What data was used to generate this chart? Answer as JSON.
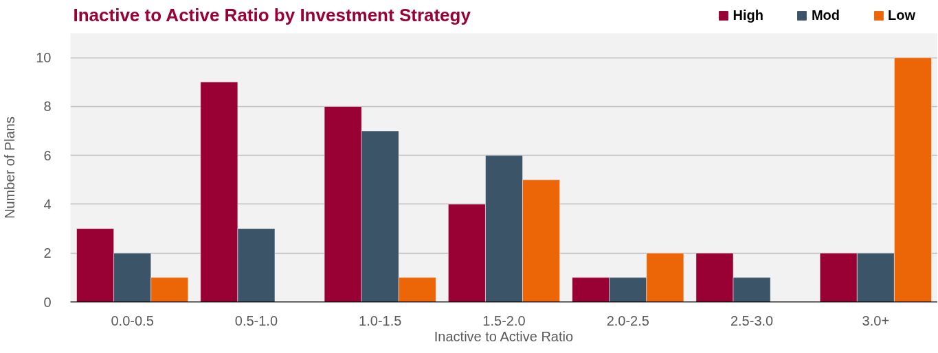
{
  "chart_data": {
    "type": "bar",
    "title": "Inactive to Active Ratio by Investment Strategy",
    "xlabel": "Inactive to Active Ratio",
    "ylabel": "Number of Plans",
    "categories": [
      "0.0-0.5",
      "0.5-1.0",
      "1.0-1.5",
      "1.5-2.0",
      "2.0-2.5",
      "2.5-3.0",
      "3.0+"
    ],
    "series": [
      {
        "name": "High",
        "color": "#990033",
        "values": [
          3,
          9,
          8,
          4,
          1,
          2,
          2
        ]
      },
      {
        "name": "Mod",
        "color": "#3c5468",
        "values": [
          2,
          3,
          7,
          6,
          1,
          1,
          2
        ]
      },
      {
        "name": "Low",
        "color": "#ec6608",
        "values": [
          1,
          0,
          1,
          5,
          2,
          0,
          10
        ]
      }
    ],
    "ylim": [
      0,
      11
    ],
    "yticks": [
      0,
      2,
      4,
      6,
      8,
      10
    ],
    "grid": "y",
    "legend": "top right"
  }
}
